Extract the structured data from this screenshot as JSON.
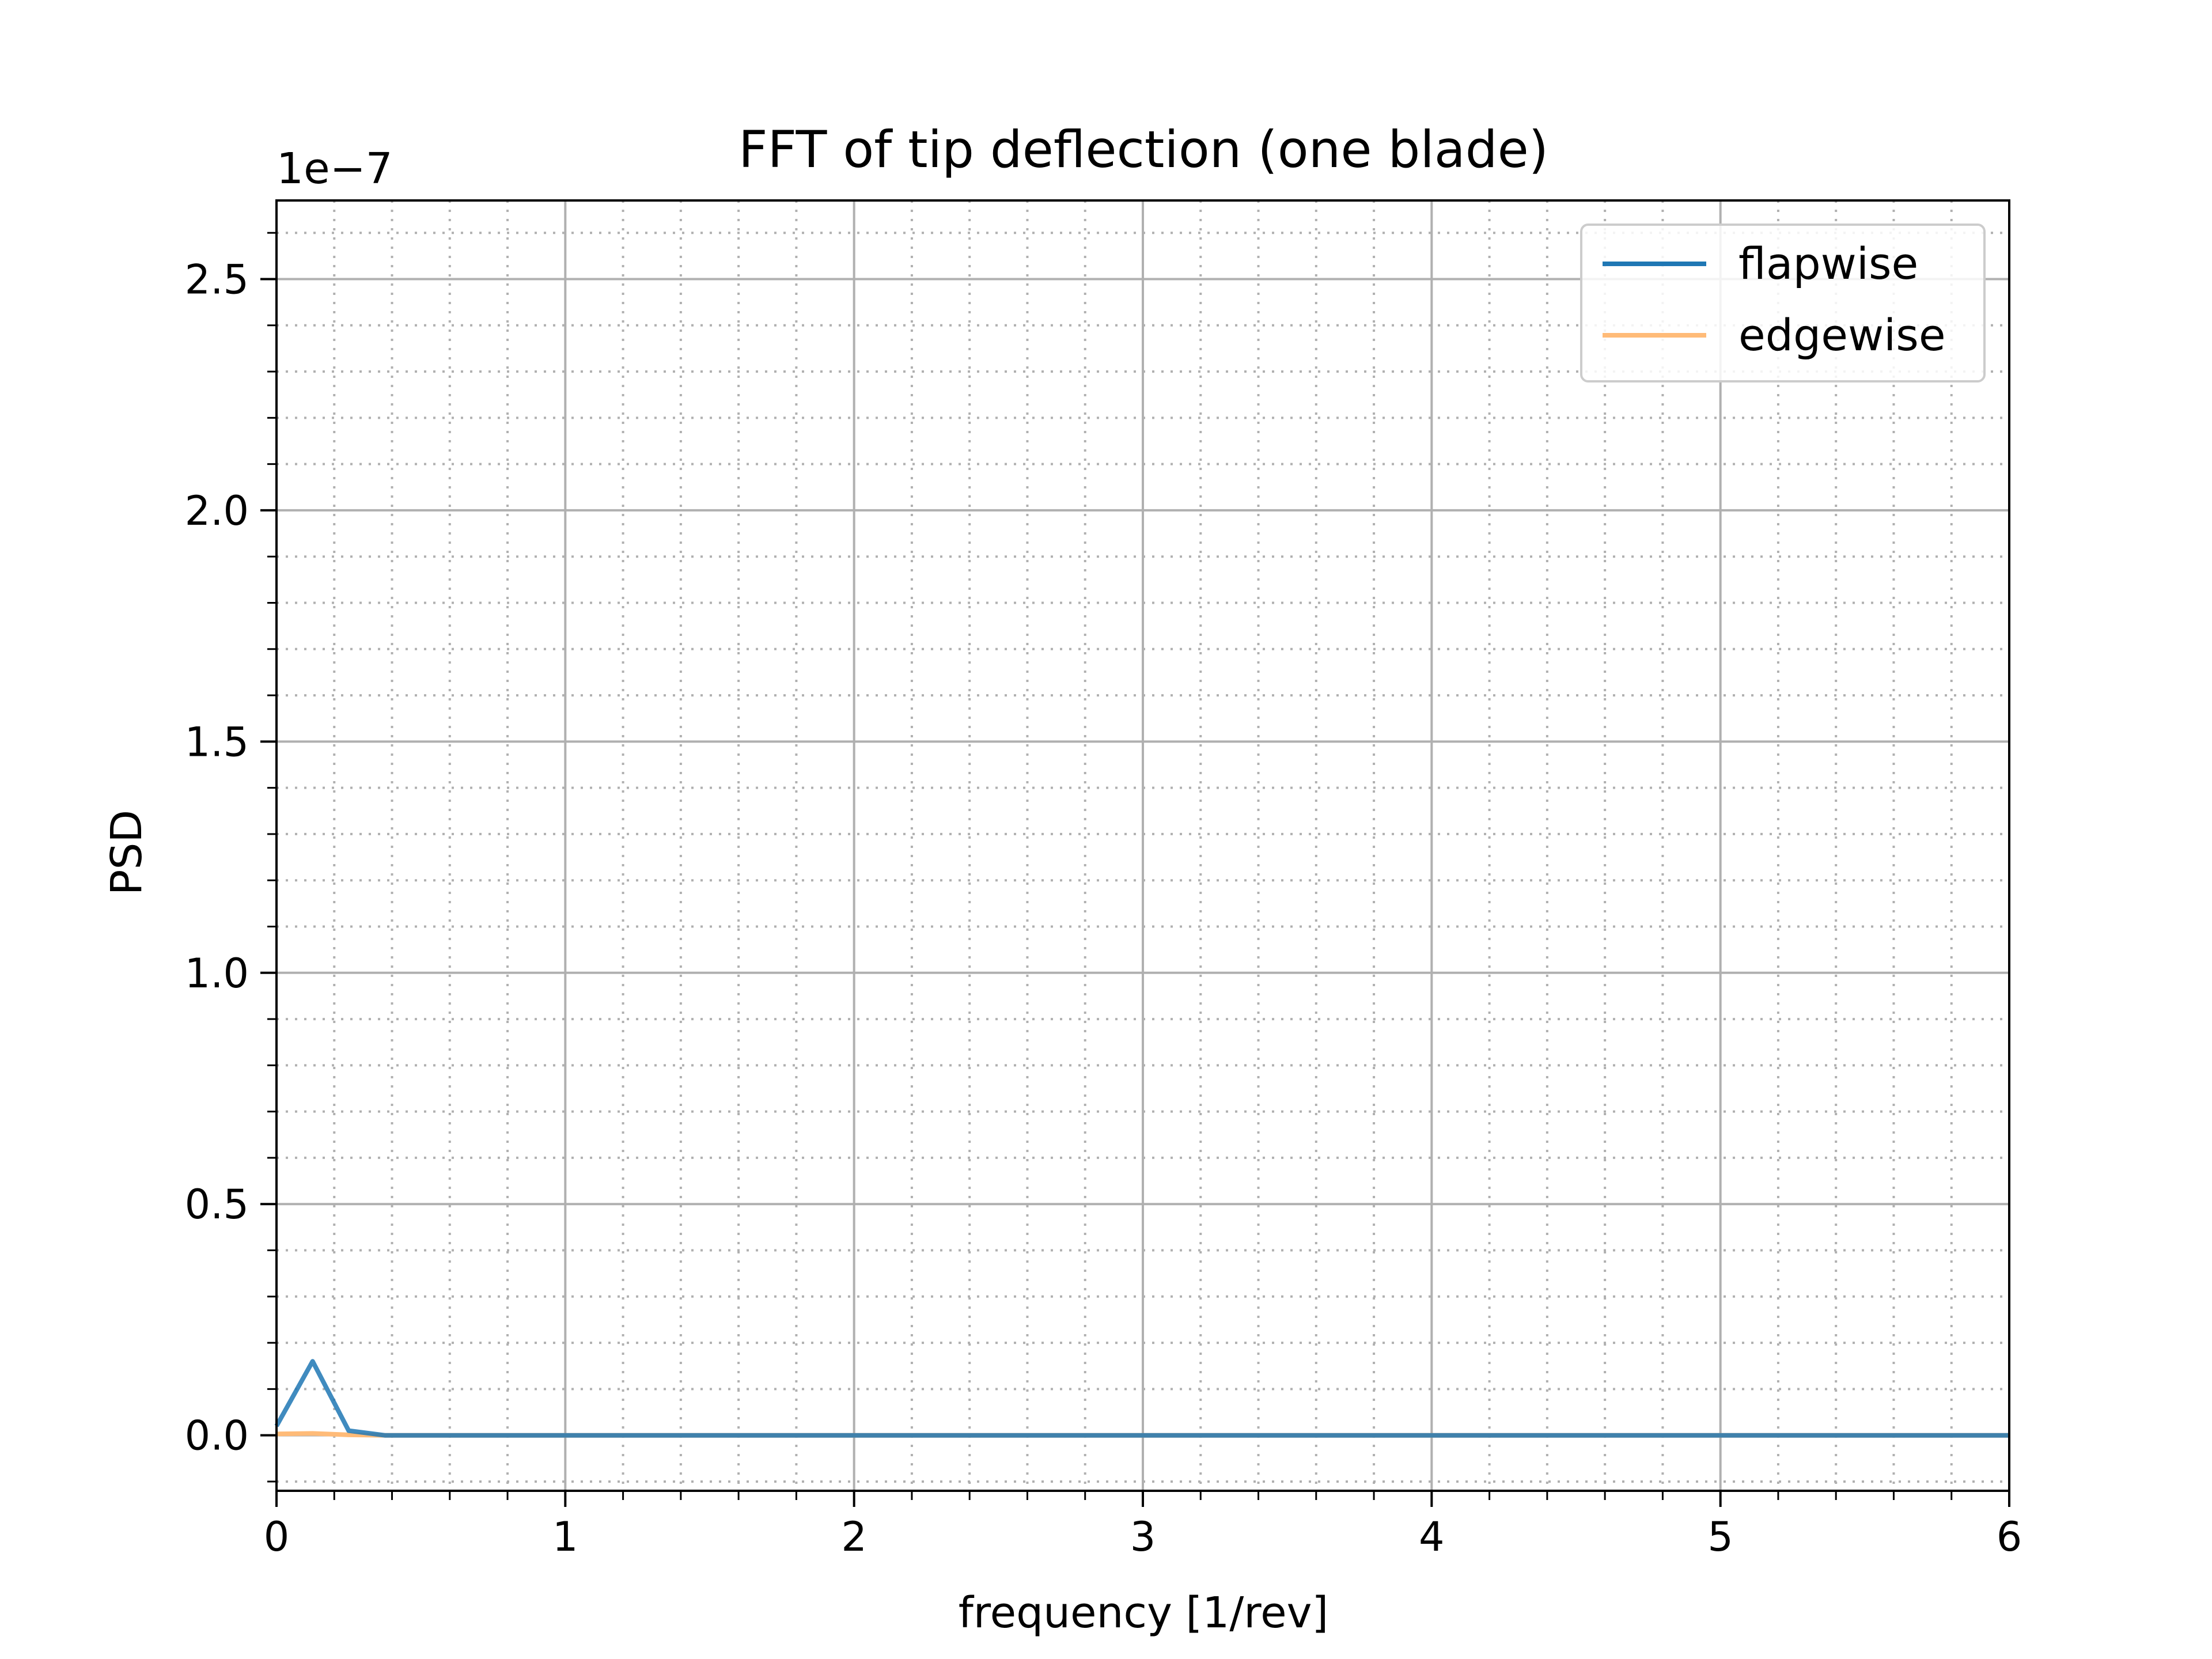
{
  "chart_data": {
    "type": "line",
    "title": "FFT of tip deflection (one blade)",
    "xlabel": "frequency [1/rev]",
    "ylabel": "PSD",
    "y_offset_text": "1e−7",
    "xlim": [
      0,
      6
    ],
    "ylim": [
      -0.12,
      2.67
    ],
    "x_ticks": [
      0,
      1,
      2,
      3,
      4,
      5,
      6
    ],
    "x_tick_labels": [
      "0",
      "1",
      "2",
      "3",
      "4",
      "5",
      "6"
    ],
    "y_ticks": [
      0.0,
      0.5,
      1.0,
      1.5,
      2.0,
      2.5
    ],
    "y_tick_labels": [
      "0.0",
      "0.5",
      "1.0",
      "1.5",
      "2.0",
      "2.5"
    ],
    "y_unit_scale": 1e-07,
    "grid": {
      "major": true,
      "minor": true
    },
    "legend": {
      "position": "top-right"
    },
    "series": [
      {
        "name": "flapwise",
        "color": "#1f77b4",
        "x": [
          0,
          0.125,
          0.25,
          0.375,
          0.5,
          1,
          2,
          3,
          4,
          5,
          6
        ],
        "y": [
          0.02,
          0.16,
          0.01,
          0.0,
          0.0,
          0.0,
          0.0,
          0.0,
          0.0,
          0.0,
          0.0
        ]
      },
      {
        "name": "edgewise",
        "color": "#ffbb78",
        "x": [
          0,
          0.125,
          0.25,
          0.375,
          0.5,
          1,
          2,
          3,
          4,
          5,
          6
        ],
        "y": [
          0.003,
          0.004,
          0.001,
          0.0,
          0.0,
          0.0,
          0.0,
          0.0,
          0.0,
          0.0,
          0.0
        ]
      }
    ]
  }
}
